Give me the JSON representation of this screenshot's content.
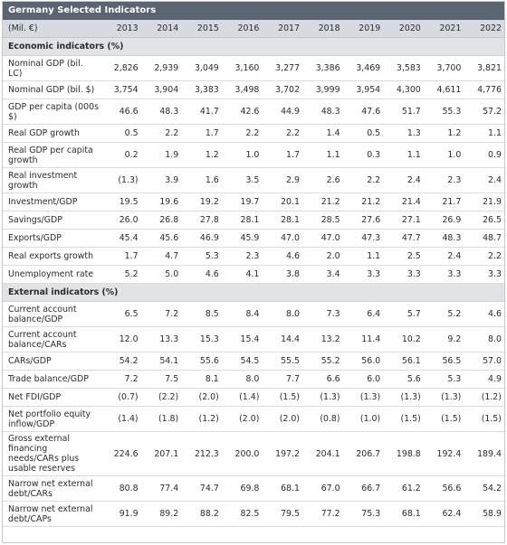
{
  "title": "Germany Selected Indicators",
  "unit_label": "(Mil. €)",
  "years": [
    "2013",
    "2014",
    "2015",
    "2016",
    "2017",
    "2018",
    "2019",
    "2020",
    "2021",
    "2022"
  ],
  "sections": [
    {
      "heading": "Economic indicators (%)",
      "rows": [
        {
          "label": "Nominal GDP (bil. LC)",
          "h": 2,
          "values": [
            "2,826",
            "2,939",
            "3,049",
            "3,160",
            "3,277",
            "3,386",
            "3,469",
            "3,583",
            "3,700",
            "3,821"
          ]
        },
        {
          "label": "Nominal GDP (bil. $)",
          "h": 1,
          "values": [
            "3,754",
            "3,904",
            "3,383",
            "3,498",
            "3,702",
            "3,999",
            "3,954",
            "4,300",
            "4,611",
            "4,776"
          ]
        },
        {
          "label": "GDP per capita (000s $)",
          "h": 2,
          "values": [
            "46.6",
            "48.3",
            "41.7",
            "42.6",
            "44.9",
            "48.3",
            "47.6",
            "51.7",
            "55.3",
            "57.2"
          ]
        },
        {
          "label": "Real GDP growth",
          "h": 1,
          "values": [
            "0.5",
            "2.2",
            "1.7",
            "2.2",
            "2.2",
            "1.4",
            "0.5",
            "1.3",
            "1.2",
            "1.1"
          ]
        },
        {
          "label": "Real GDP per capita growth",
          "h": 2,
          "values": [
            "0.2",
            "1.9",
            "1.2",
            "1.0",
            "1.7",
            "1.1",
            "0.3",
            "1.1",
            "1.0",
            "0.9"
          ]
        },
        {
          "label": "Real investment growth",
          "h": 2,
          "values": [
            "(1.3)",
            "3.9",
            "1.6",
            "3.5",
            "2.9",
            "2.6",
            "2.2",
            "2.4",
            "2.3",
            "2.4"
          ]
        },
        {
          "label": "Investment/GDP",
          "h": 1,
          "values": [
            "19.5",
            "19.6",
            "19.2",
            "19.7",
            "20.1",
            "21.2",
            "21.2",
            "21.4",
            "21.7",
            "21.9"
          ]
        },
        {
          "label": "Savings/GDP",
          "h": 1,
          "values": [
            "26.0",
            "26.8",
            "27.8",
            "28.1",
            "28.1",
            "28.5",
            "27.6",
            "27.1",
            "26.9",
            "26.5"
          ]
        },
        {
          "label": "Exports/GDP",
          "h": 1,
          "values": [
            "45.4",
            "45.6",
            "46.9",
            "45.9",
            "47.0",
            "47.0",
            "47.3",
            "47.7",
            "48.3",
            "48.7"
          ]
        },
        {
          "label": "Real exports growth",
          "h": 1,
          "values": [
            "1.7",
            "4.7",
            "5.3",
            "2.3",
            "4.6",
            "2.0",
            "1.1",
            "2.5",
            "2.4",
            "2.2"
          ]
        },
        {
          "label": "Unemployment rate",
          "h": 1,
          "values": [
            "5.2",
            "5.0",
            "4.6",
            "4.1",
            "3.8",
            "3.4",
            "3.3",
            "3.3",
            "3.3",
            "3.3"
          ]
        }
      ]
    },
    {
      "heading": "External indicators (%)",
      "rows": [
        {
          "label": "Current account balance/GDP",
          "h": 2,
          "values": [
            "6.5",
            "7.2",
            "8.5",
            "8.4",
            "8.0",
            "7.3",
            "6.4",
            "5.7",
            "5.2",
            "4.6"
          ]
        },
        {
          "label": "Current account balance/CARs",
          "h": 2,
          "values": [
            "12.0",
            "13.3",
            "15.3",
            "15.4",
            "14.4",
            "13.2",
            "11.4",
            "10.2",
            "9.2",
            "8.0"
          ]
        },
        {
          "label": "CARs/GDP",
          "h": 1,
          "values": [
            "54.2",
            "54.1",
            "55.6",
            "54.5",
            "55.5",
            "55.2",
            "56.0",
            "56.1",
            "56.5",
            "57.0"
          ]
        },
        {
          "label": "Trade balance/GDP",
          "h": 1,
          "values": [
            "7.2",
            "7.5",
            "8.1",
            "8.0",
            "7.7",
            "6.6",
            "6.0",
            "5.6",
            "5.3",
            "4.9"
          ]
        },
        {
          "label": "Net FDI/GDP",
          "h": 1,
          "values": [
            "(0.7)",
            "(2.2)",
            "(2.0)",
            "(1.4)",
            "(1.5)",
            "(1.3)",
            "(1.3)",
            "(1.3)",
            "(1.3)",
            "(1.2)"
          ]
        },
        {
          "label": "Net portfolio equity inflow/GDP",
          "h": 2,
          "values": [
            "(1.4)",
            "(1.8)",
            "(1.2)",
            "(2.0)",
            "(2.0)",
            "(0.8)",
            "(1.0)",
            "(1.5)",
            "(1.5)",
            "(1.5)"
          ]
        },
        {
          "label": "Gross external financing needs/CARs plus usable reserves",
          "h": 4,
          "values": [
            "224.6",
            "207.1",
            "212.3",
            "200.0",
            "197.2",
            "204.1",
            "206.7",
            "198.8",
            "192.4",
            "189.4"
          ]
        },
        {
          "label": "Narrow net external debt/CARs",
          "h": 2,
          "values": [
            "80.8",
            "77.4",
            "74.7",
            "69.8",
            "68.1",
            "67.0",
            "66.7",
            "61.2",
            "56.6",
            "54.2"
          ]
        },
        {
          "label": "Narrow net external debt/CAPs",
          "h": 2,
          "values": [
            "91.9",
            "89.2",
            "88.2",
            "82.5",
            "79.5",
            "77.2",
            "75.3",
            "68.1",
            "62.4",
            "58.9"
          ]
        }
      ]
    }
  ]
}
